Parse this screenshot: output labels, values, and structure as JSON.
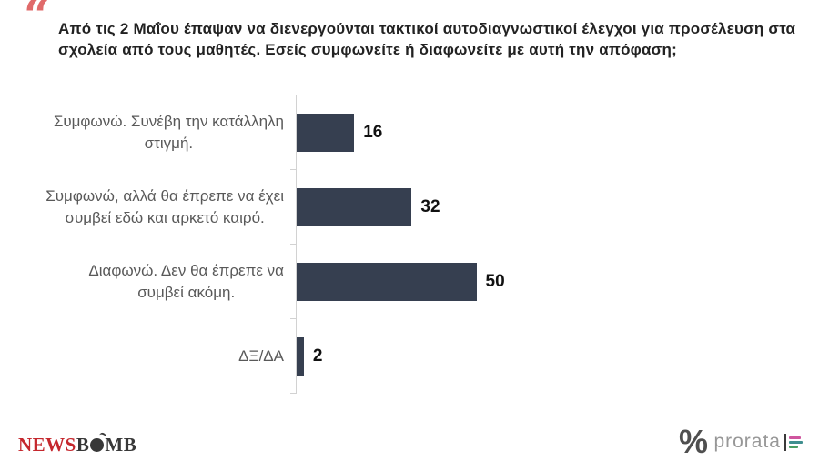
{
  "header": {
    "quote_icon": "“",
    "title_line1": "Από τις 2 Μαΐου έπαψαν να διενεργούνται τακτικοί αυτοδιαγνωστικοί έλεγχοι για προσέλευση στα",
    "title_line2": "σχολεία από τους μαθητές. Εσείς συμφωνείτε ή διαφωνείτε με αυτή την απόφαση;"
  },
  "chart_data": {
    "type": "bar",
    "orientation": "horizontal",
    "title": "Από τις 2 Μαΐου έπαψαν να διενεργούνται τακτικοί αυτοδιαγνωστικοί έλεγχοι για προσέλευση στα σχολεία από τους μαθητές. Εσείς συμφωνείτε ή διαφωνείτε με αυτή την απόφαση;",
    "categories": [
      "Συμφωνώ. Συνέβη την κατάλληλη\nστιγμή.",
      "Συμφωνώ, αλλά θα έπρεπε να έχει\nσυμβεί εδώ και αρκετό καιρό.",
      "Διαφωνώ. Δεν θα έπρεπε να\nσυμβεί ακόμη.",
      "ΔΞ/ΔΑ"
    ],
    "values": [
      16,
      32,
      50,
      2
    ],
    "value_unit": "percent",
    "bar_color": "#363f50",
    "axis_color": "#d2d2d2",
    "grid": false,
    "legend": false,
    "data_labels": true
  },
  "footer": {
    "newsbomb": {
      "news": "NEWS",
      "b": "B",
      "mb": "MB"
    },
    "percent_logo": "%",
    "prorata_label": "prorata"
  },
  "colors": {
    "accent_quote": "#e06a6a",
    "bar": "#363f50",
    "newsbomb_red": "#c5272d",
    "newsbomb_dark": "#383838",
    "label_gray": "#595959"
  }
}
